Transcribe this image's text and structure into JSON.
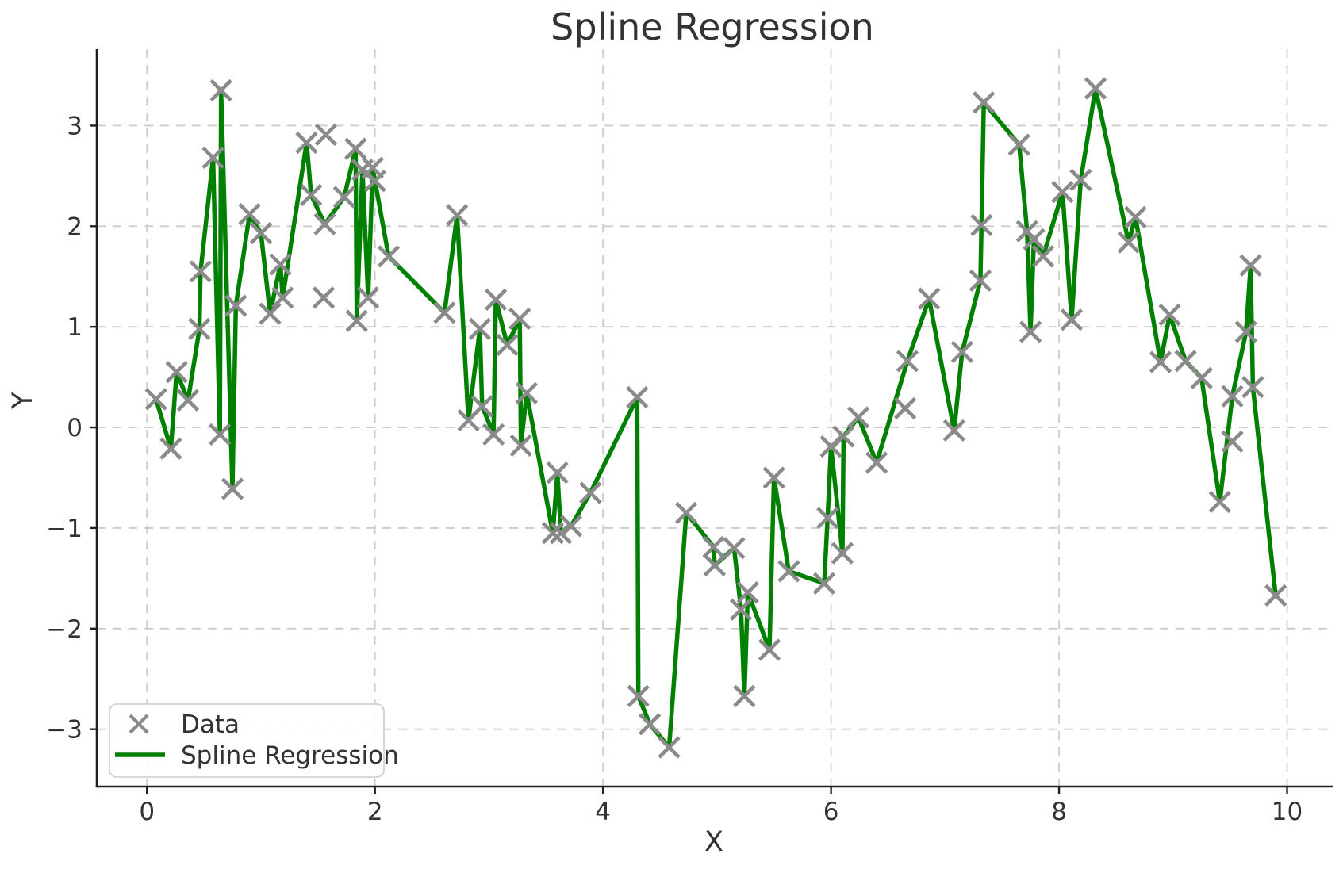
{
  "chart_data": {
    "type": "scatter+line",
    "title": "Spline Regression",
    "xlabel": "X",
    "ylabel": "Y",
    "xlim": [
      -0.44,
      10.4
    ],
    "ylim": [
      -3.57,
      3.76
    ],
    "xticks": [
      0,
      2,
      4,
      6,
      8,
      10
    ],
    "yticks": [
      -3,
      -2,
      -1,
      0,
      1,
      2,
      3
    ],
    "grid": true,
    "grid_style": "dashed",
    "legend_position": "lower left",
    "colors": {
      "line": "#008000",
      "marker": "#8a8a8a",
      "text": "#333333",
      "spine": "#1f1f1f",
      "grid": "#cccccc",
      "legend_border": "#cccccc",
      "legend_bg": "#ffffff"
    },
    "series": [
      {
        "name": "Data",
        "type": "scatter",
        "marker": "x",
        "color": "#8a8a8a",
        "points": [
          [
            0.08,
            0.28
          ],
          [
            0.21,
            -0.21
          ],
          [
            0.26,
            0.55
          ],
          [
            0.36,
            0.27
          ],
          [
            0.46,
            0.98
          ],
          [
            0.47,
            1.55
          ],
          [
            0.58,
            2.68
          ],
          [
            0.64,
            -0.07
          ],
          [
            0.65,
            3.35
          ],
          [
            0.75,
            -0.61
          ],
          [
            0.78,
            1.21
          ],
          [
            0.9,
            2.12
          ],
          [
            1.0,
            1.93
          ],
          [
            1.08,
            1.13
          ],
          [
            1.17,
            1.62
          ],
          [
            1.19,
            1.29
          ],
          [
            1.4,
            2.83
          ],
          [
            1.44,
            2.31
          ],
          [
            1.55,
            1.29
          ],
          [
            1.56,
            2.02
          ],
          [
            1.57,
            2.91
          ],
          [
            1.73,
            2.29
          ],
          [
            1.83,
            2.77
          ],
          [
            1.84,
            1.06
          ],
          [
            1.89,
            2.56
          ],
          [
            1.94,
            1.29
          ],
          [
            1.98,
            2.58
          ],
          [
            2.0,
            2.45
          ],
          [
            2.12,
            1.7
          ],
          [
            2.61,
            1.14
          ],
          [
            2.72,
            2.11
          ],
          [
            2.82,
            0.07
          ],
          [
            2.92,
            0.98
          ],
          [
            2.94,
            0.21
          ],
          [
            3.04,
            -0.07
          ],
          [
            3.06,
            1.27
          ],
          [
            3.16,
            0.82
          ],
          [
            3.27,
            1.08
          ],
          [
            3.28,
            -0.18
          ],
          [
            3.33,
            0.34
          ],
          [
            3.56,
            -1.05
          ],
          [
            3.6,
            -0.45
          ],
          [
            3.63,
            -1.05
          ],
          [
            3.72,
            -0.98
          ],
          [
            3.89,
            -0.65
          ],
          [
            4.3,
            0.3
          ],
          [
            4.31,
            -2.67
          ],
          [
            4.41,
            -2.95
          ],
          [
            4.58,
            -3.18
          ],
          [
            4.73,
            -0.85
          ],
          [
            4.97,
            -1.19
          ],
          [
            4.98,
            -1.37
          ],
          [
            5.15,
            -1.2
          ],
          [
            5.21,
            -1.81
          ],
          [
            5.24,
            -2.67
          ],
          [
            5.27,
            -1.64
          ],
          [
            5.46,
            -2.21
          ],
          [
            5.5,
            -0.5
          ],
          [
            5.63,
            -1.43
          ],
          [
            5.94,
            -1.55
          ],
          [
            5.97,
            -0.9
          ],
          [
            6.0,
            -0.19
          ],
          [
            6.1,
            -1.25
          ],
          [
            6.11,
            -0.09
          ],
          [
            6.24,
            0.1
          ],
          [
            6.4,
            -0.35
          ],
          [
            6.65,
            0.19
          ],
          [
            6.67,
            0.66
          ],
          [
            6.86,
            1.28
          ],
          [
            7.08,
            -0.03
          ],
          [
            7.15,
            0.75
          ],
          [
            7.31,
            1.46
          ],
          [
            7.32,
            2.01
          ],
          [
            7.34,
            3.23
          ],
          [
            7.65,
            2.81
          ],
          [
            7.72,
            1.95
          ],
          [
            7.75,
            0.95
          ],
          [
            7.78,
            1.87
          ],
          [
            7.86,
            1.7
          ],
          [
            8.03,
            2.34
          ],
          [
            8.11,
            1.07
          ],
          [
            8.19,
            2.46
          ],
          [
            8.32,
            3.37
          ],
          [
            8.61,
            1.84
          ],
          [
            8.67,
            2.09
          ],
          [
            8.89,
            0.65
          ],
          [
            8.97,
            1.12
          ],
          [
            9.11,
            0.66
          ],
          [
            9.25,
            0.49
          ],
          [
            9.41,
            -0.74
          ],
          [
            9.52,
            0.31
          ],
          [
            9.52,
            -0.14
          ],
          [
            9.64,
            0.95
          ],
          [
            9.68,
            1.61
          ],
          [
            9.7,
            0.4
          ],
          [
            9.9,
            -1.67
          ]
        ]
      },
      {
        "name": "Spline Regression",
        "type": "line",
        "color": "#008000",
        "points": [
          [
            0.08,
            0.28
          ],
          [
            0.21,
            -0.21
          ],
          [
            0.26,
            0.55
          ],
          [
            0.36,
            0.27
          ],
          [
            0.46,
            0.98
          ],
          [
            0.47,
            1.55
          ],
          [
            0.58,
            2.68
          ],
          [
            0.64,
            -0.07
          ],
          [
            0.65,
            3.35
          ],
          [
            0.75,
            -0.61
          ],
          [
            0.78,
            1.21
          ],
          [
            0.9,
            2.12
          ],
          [
            1.0,
            1.93
          ],
          [
            1.08,
            1.13
          ],
          [
            1.17,
            1.62
          ],
          [
            1.19,
            1.29
          ],
          [
            1.4,
            2.83
          ],
          [
            1.44,
            2.31
          ],
          [
            1.56,
            2.02
          ],
          [
            1.73,
            2.29
          ],
          [
            1.83,
            2.77
          ],
          [
            1.84,
            1.06
          ],
          [
            1.89,
            2.56
          ],
          [
            1.94,
            1.29
          ],
          [
            1.98,
            2.58
          ],
          [
            2.0,
            2.45
          ],
          [
            2.12,
            1.7
          ],
          [
            2.61,
            1.14
          ],
          [
            2.72,
            2.11
          ],
          [
            2.82,
            0.07
          ],
          [
            2.92,
            0.98
          ],
          [
            2.94,
            0.21
          ],
          [
            3.04,
            -0.07
          ],
          [
            3.06,
            1.27
          ],
          [
            3.16,
            0.82
          ],
          [
            3.27,
            1.08
          ],
          [
            3.28,
            -0.18
          ],
          [
            3.33,
            0.34
          ],
          [
            3.56,
            -1.05
          ],
          [
            3.6,
            -0.45
          ],
          [
            3.63,
            -1.05
          ],
          [
            3.72,
            -0.98
          ],
          [
            3.89,
            -0.65
          ],
          [
            4.3,
            0.3
          ],
          [
            4.31,
            -2.67
          ],
          [
            4.41,
            -2.95
          ],
          [
            4.58,
            -3.18
          ],
          [
            4.73,
            -0.85
          ],
          [
            4.97,
            -1.19
          ],
          [
            4.98,
            -1.37
          ],
          [
            5.15,
            -1.2
          ],
          [
            5.21,
            -1.81
          ],
          [
            5.24,
            -2.67
          ],
          [
            5.27,
            -1.64
          ],
          [
            5.46,
            -2.21
          ],
          [
            5.5,
            -0.5
          ],
          [
            5.63,
            -1.43
          ],
          [
            5.94,
            -1.55
          ],
          [
            5.97,
            -0.9
          ],
          [
            6.0,
            -0.19
          ],
          [
            6.1,
            -1.25
          ],
          [
            6.11,
            -0.09
          ],
          [
            6.24,
            0.1
          ],
          [
            6.4,
            -0.35
          ],
          [
            6.67,
            0.66
          ],
          [
            6.86,
            1.28
          ],
          [
            7.08,
            -0.03
          ],
          [
            7.15,
            0.75
          ],
          [
            7.31,
            1.46
          ],
          [
            7.32,
            2.01
          ],
          [
            7.34,
            3.23
          ],
          [
            7.65,
            2.81
          ],
          [
            7.72,
            1.95
          ],
          [
            7.75,
            0.95
          ],
          [
            7.78,
            1.87
          ],
          [
            7.86,
            1.7
          ],
          [
            8.03,
            2.34
          ],
          [
            8.11,
            1.07
          ],
          [
            8.19,
            2.46
          ],
          [
            8.32,
            3.37
          ],
          [
            8.61,
            1.84
          ],
          [
            8.67,
            2.09
          ],
          [
            8.89,
            0.65
          ],
          [
            8.97,
            1.12
          ],
          [
            9.11,
            0.66
          ],
          [
            9.25,
            0.49
          ],
          [
            9.41,
            -0.74
          ],
          [
            9.52,
            0.31
          ],
          [
            9.64,
            0.95
          ],
          [
            9.68,
            1.61
          ],
          [
            9.7,
            0.4
          ],
          [
            9.9,
            -1.67
          ]
        ]
      }
    ],
    "legend": {
      "items": [
        {
          "label": "Data",
          "glyph": "x-marker"
        },
        {
          "label": "Spline Regression",
          "glyph": "line-sample"
        }
      ]
    }
  }
}
